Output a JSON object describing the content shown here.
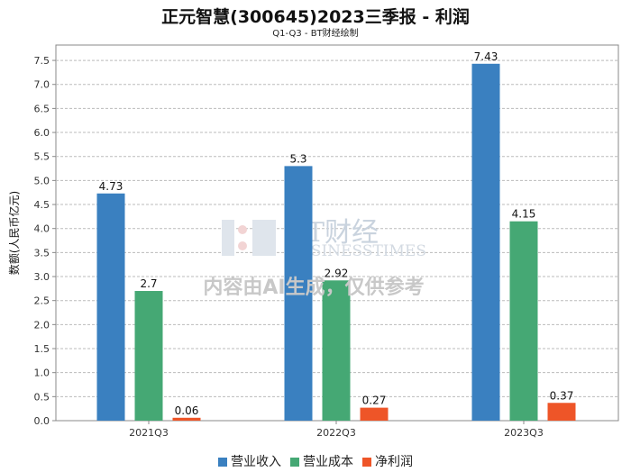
{
  "chart_data": {
    "type": "bar",
    "title": "正元智慧(300645)2023三季报 - 利润",
    "subtitle": "Q1-Q3 - BT财经绘制",
    "ylabel": "数额(人民币亿元)",
    "xlabel": "",
    "categories": [
      "2021Q3",
      "2022Q3",
      "2023Q3"
    ],
    "series": [
      {
        "name": "营业收入",
        "color": "#3a80c0",
        "values": [
          4.73,
          5.3,
          7.43
        ]
      },
      {
        "name": "营业成本",
        "color": "#45a874",
        "values": [
          2.7,
          2.92,
          4.15
        ]
      },
      {
        "name": "净利润",
        "color": "#ee5528",
        "values": [
          0.06,
          0.27,
          0.37
        ]
      }
    ],
    "ylim": [
      0,
      7.82
    ],
    "yticks": [
      "0.0",
      "0.5",
      "1.0",
      "1.5",
      "2.0",
      "2.5",
      "3.0",
      "3.5",
      "4.0",
      "4.5",
      "5.0",
      "5.5",
      "6.0",
      "6.5",
      "7.0",
      "7.5"
    ],
    "grid": true,
    "legend": "bottom"
  },
  "watermark": {
    "brand": "BT财经",
    "brand_en": "BUSINESSTIMES",
    "notice": "内容由AI生成，仅供参考"
  }
}
